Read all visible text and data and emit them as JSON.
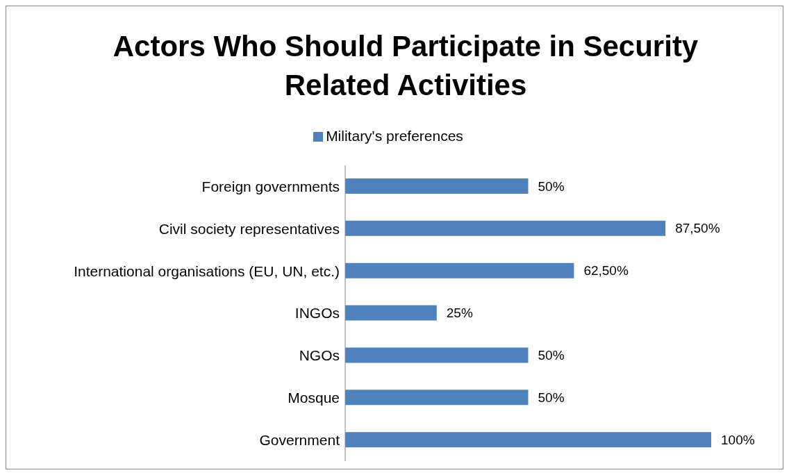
{
  "chart_data": {
    "type": "bar",
    "orientation": "horizontal",
    "title": "Actors Who Should Participate in Security Related Activities",
    "categories": [
      "Foreign governments",
      "Civil society representatives",
      "International organisations (EU, UN, etc.)",
      "INGOs",
      "NGOs",
      "Mosque",
      "Government"
    ],
    "series": [
      {
        "name": "Military's preferences",
        "color": "#4f81bd",
        "values": [
          50,
          87.5,
          62.5,
          25,
          50,
          50,
          100
        ],
        "value_labels": [
          "50%",
          "87,50%",
          "62,50%",
          "25%",
          "50%",
          "50%",
          "100%"
        ]
      }
    ],
    "legend": "top"
  }
}
